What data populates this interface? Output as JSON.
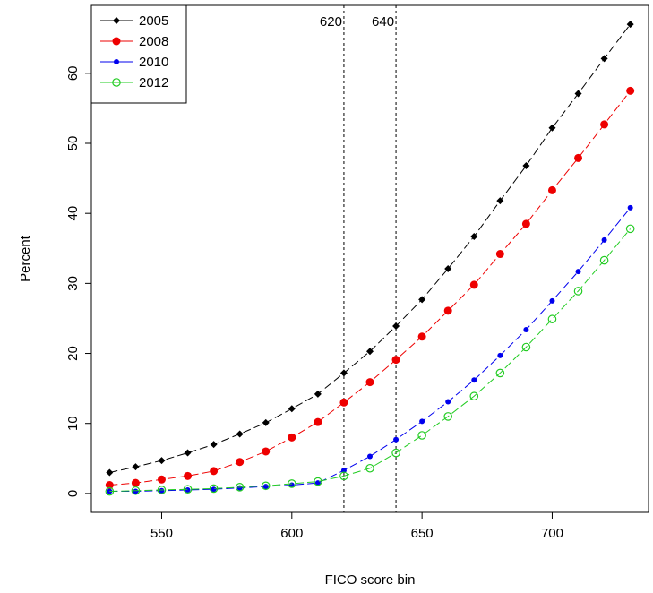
{
  "chart_data": {
    "type": "line",
    "xlabel": "FICO score bin",
    "ylabel": "Percent",
    "xlim": [
      523,
      737
    ],
    "ylim": [
      -2.7,
      69.7
    ],
    "x_ticks": [
      550,
      600,
      650,
      700
    ],
    "y_ticks": [
      0,
      10,
      20,
      30,
      40,
      50,
      60
    ],
    "grid": false,
    "legend_position": "top-left",
    "x": [
      530,
      540,
      550,
      560,
      570,
      580,
      590,
      600,
      610,
      620,
      630,
      640,
      650,
      660,
      670,
      680,
      690,
      700,
      710,
      720,
      730
    ],
    "series": [
      {
        "name": "2005",
        "color": "#000000",
        "marker": "diamond",
        "values": [
          3.0,
          3.8,
          4.7,
          5.8,
          7.0,
          8.5,
          10.1,
          12.1,
          14.2,
          17.2,
          20.3,
          23.9,
          27.7,
          32.1,
          36.7,
          41.8,
          46.8,
          52.2,
          57.1,
          62.1,
          67.0
        ]
      },
      {
        "name": "2008",
        "color": "#ee0000",
        "marker": "filled-circle",
        "values": [
          1.2,
          1.5,
          2.0,
          2.5,
          3.2,
          4.5,
          6.0,
          8.0,
          10.2,
          13.0,
          15.9,
          19.1,
          22.4,
          26.1,
          29.8,
          34.2,
          38.5,
          43.3,
          47.9,
          52.7,
          57.5
        ]
      },
      {
        "name": "2010",
        "color": "#0000ee",
        "marker": "small-dot",
        "values": [
          0.3,
          0.3,
          0.4,
          0.5,
          0.6,
          0.8,
          1.0,
          1.2,
          1.5,
          3.3,
          5.3,
          7.7,
          10.3,
          13.1,
          16.2,
          19.7,
          23.4,
          27.5,
          31.7,
          36.2,
          40.8
        ]
      },
      {
        "name": "2012",
        "color": "#22cc22",
        "marker": "open-circle",
        "values": [
          0.3,
          0.4,
          0.5,
          0.6,
          0.7,
          0.9,
          1.1,
          1.4,
          1.7,
          2.5,
          3.6,
          5.8,
          8.3,
          11.0,
          13.9,
          17.2,
          20.9,
          24.9,
          28.9,
          33.3,
          37.8
        ]
      }
    ],
    "vlines": [
      {
        "x": 620,
        "label": "620",
        "style": "dashed"
      },
      {
        "x": 640,
        "label": "640",
        "style": "dashed"
      }
    ]
  }
}
